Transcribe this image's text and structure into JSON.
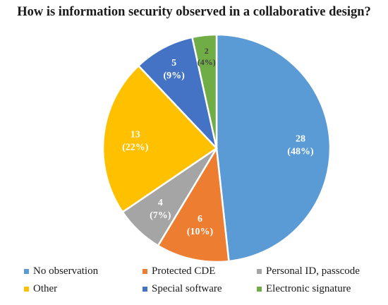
{
  "chart_data": {
    "type": "pie",
    "title": "How is information security observed in a collaborative design?",
    "slices": [
      {
        "label": "No observation",
        "value": 28,
        "value_label": "28",
        "percent_label": "(48%)",
        "color": "#5b9bd5"
      },
      {
        "label": "Protected CDE",
        "value": 6,
        "value_label": "6",
        "percent_label": "(10%)",
        "color": "#ed7d31"
      },
      {
        "label": "Personal ID, passcode",
        "value": 4,
        "value_label": "4",
        "percent_label": "(7%)",
        "color": "#a5a5a5"
      },
      {
        "label": "Other",
        "value": 13,
        "value_label": "13",
        "percent_label": "(22%)",
        "color": "#ffc000"
      },
      {
        "label": "Special software",
        "value": 5,
        "value_label": "5",
        "percent_label": "(9%)",
        "color": "#4472c4"
      },
      {
        "label": "Electronic signature",
        "value": 2,
        "value_label": "2",
        "percent_label": "(4%)",
        "color": "#70ad47"
      }
    ],
    "legend_position": "bottom",
    "data_label_colors": {
      "light": "#ffffff",
      "dark": "#404040"
    }
  }
}
